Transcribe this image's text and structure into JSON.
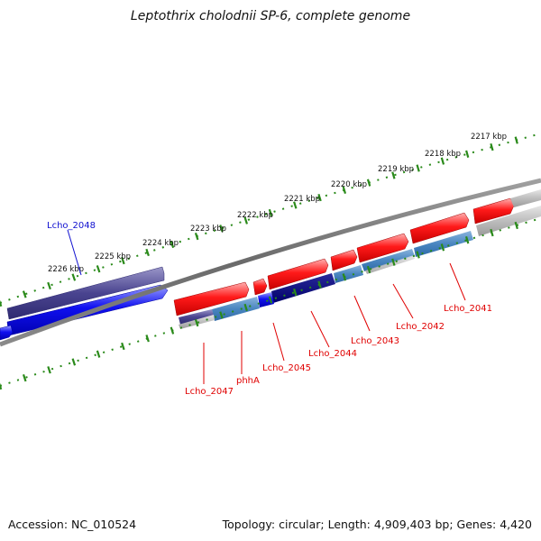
{
  "title": "Leptothrix cholodnii SP-6, complete genome",
  "footer": {
    "accession": "Accession: NC_010524",
    "summary": "Topology: circular; Length: 4,909,403 bp; Genes: 4,420"
  },
  "kbp_labels": [
    "2217 kbp",
    "2218 kbp",
    "2219 kbp",
    "2220 kbp",
    "2221 kbp",
    "2222 kbp",
    "2223 kbp",
    "2224 kbp",
    "2225 kbp",
    "2226 kbp"
  ],
  "gene_labels": {
    "lcho_2048": "Lcho_2048",
    "lcho_2047": "Lcho_2047",
    "phha": "phhA",
    "lcho_2045": "Lcho_2045",
    "lcho_2044": "Lcho_2044",
    "lcho_2043": "Lcho_2043",
    "lcho_2042": "Lcho_2042",
    "lcho_2041": "Lcho_2041"
  },
  "colors": {
    "forward_gene": "#ff0000",
    "reverse_gene": "#0000ee",
    "highlight_gene": "#4a4490",
    "tick_green": "#2a8a1a",
    "backbone": "#777777"
  }
}
